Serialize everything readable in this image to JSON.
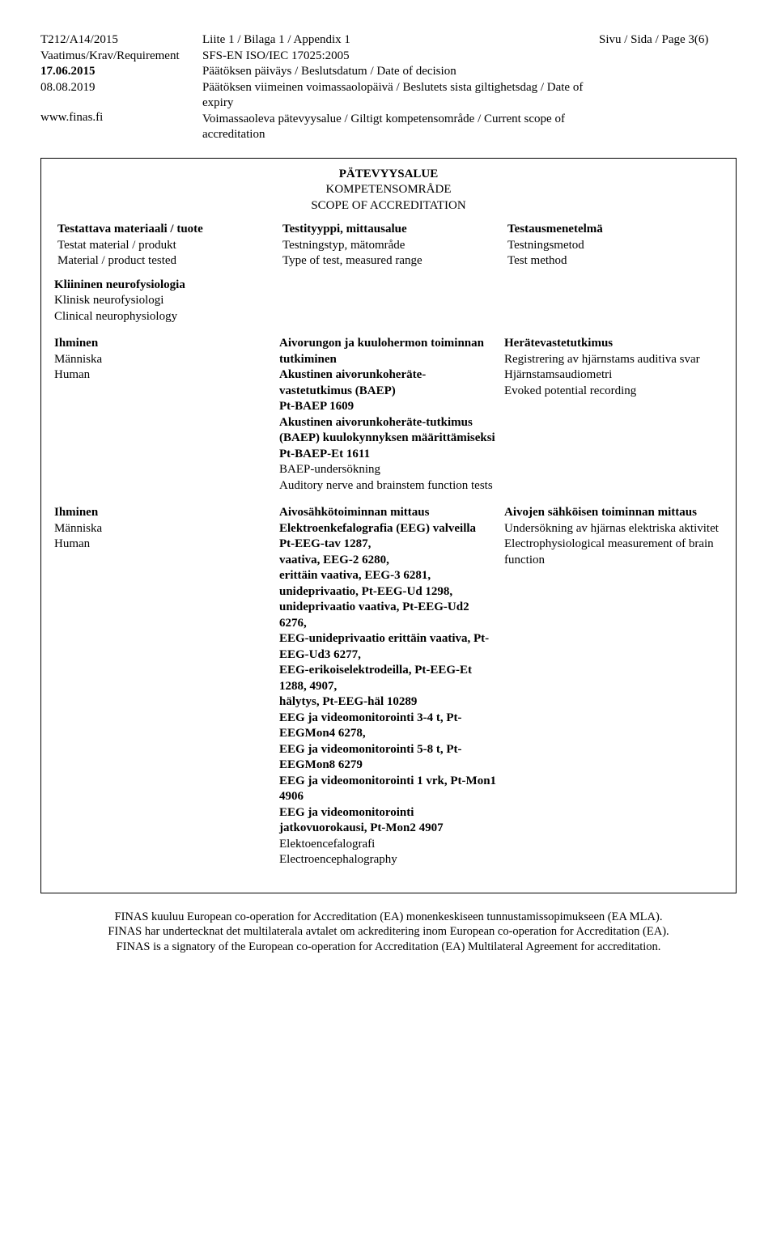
{
  "header": {
    "docCode": "T212/A14/2015",
    "reqLabel": "Vaatimus/Krav/Requirement",
    "date1": "17.06.2015",
    "date2": "08.08.2019",
    "website": "www.finas.fi",
    "mid1": "Liite 1 / Bilaga 1 / Appendix 1",
    "mid2": "SFS-EN ISO/IEC 17025:2005",
    "mid3": "Päätöksen päiväys / Beslutsdatum / Date of decision",
    "mid4": "Päätöksen viimeinen voimassaolopäivä / Beslutets sista giltighetsdag / Date of expiry",
    "mid5": "Voimassaoleva pätevyysalue / Giltigt kompetensområde / Current scope of accreditation",
    "pageLabel": "Sivu / Sida / Page 3(6)"
  },
  "scope": {
    "line1": "PÄTEVYYSALUE",
    "line2": "KOMPETENSOMRÅDE",
    "line3": "SCOPE OF ACCREDITATION"
  },
  "cols": {
    "c1a": "Testattava materiaali / tuote",
    "c1b": "Testat material / produkt",
    "c1c": "Material / product tested",
    "c2a": "Testityyppi, mittausalue",
    "c2b": "Testningstyp, mätområde",
    "c2c": "Type of test, measured range",
    "c3a": "Testausmenetelmä",
    "c3b": "Testningsmetod",
    "c3c": "Test method"
  },
  "section1": {
    "fi": "Kliininen neurofysiologia",
    "sv": "Klinisk neurofysiologi",
    "en": "Clinical neurophysiology"
  },
  "row1": {
    "left_fi": "Ihminen",
    "left_sv": "Människa",
    "left_en": "Human",
    "mid1": "Aivorungon ja kuulohermon toiminnan tutkiminen",
    "mid2": "Akustinen aivorunkoheräte-vastetutkimus (BAEP)",
    "mid3": "Pt-BAEP 1609",
    "mid4": "Akustinen aivorunkoheräte-tutkimus (BAEP) kuulokynnyksen määrittämiseksi",
    "mid5": "Pt-BAEP-Et 1611",
    "mid6": "BAEP-undersökning",
    "mid7": "Auditory nerve and brainstem function tests",
    "r1": "Herätevastetutkimus",
    "r2": "Registrering av hjärnstams auditiva svar",
    "r3": "Hjärnstamsaudiometri",
    "r4": "Evoked potential recording"
  },
  "row2": {
    "left_fi": "Ihminen",
    "left_sv": "Människa",
    "left_en": "Human",
    "mid1": "Aivosähkötoiminnan mittaus",
    "mid2": "Elektroenkefalografia (EEG) valveilla",
    "mid3": "Pt-EEG-tav 1287,",
    "mid4": "vaativa, EEG-2 6280,",
    "mid5": "erittäin vaativa, EEG-3 6281,",
    "mid6": "unideprivaatio, Pt-EEG-Ud 1298,",
    "mid7": "unideprivaatio vaativa, Pt-EEG-Ud2 6276,",
    "mid8": "EEG-unideprivaatio erittäin vaativa, Pt-EEG-Ud3 6277,",
    "mid9": "EEG-erikoiselektrodeilla, Pt-EEG-Et 1288, 4907,",
    "mid10": "hälytys, Pt-EEG-häl 10289",
    "mid11": "EEG ja videomonitorointi 3-4 t, Pt-EEGMon4 6278,",
    "mid12": "EEG ja videomonitorointi 5-8 t, Pt-EEGMon8 6279",
    "mid13": "EEG ja videomonitorointi 1 vrk, Pt-Mon1 4906",
    "mid14": "EEG ja videomonitorointi jatkovuorokausi, Pt-Mon2 4907",
    "mid15": "Elektoencefalografi",
    "mid16": "Electroencephalography",
    "r1": "Aivojen sähköisen toiminnan mittaus",
    "r2": "Undersökning av hjärnas elektriska aktivitet",
    "r3": "Electrophysiological measurement of brain function"
  },
  "footer": {
    "l1": "FINAS kuuluu European co-operation for Accreditation (EA) monenkeskiseen tunnustamissopimukseen (EA MLA).",
    "l2": "FINAS har undertecknat det multilaterala avtalet om ackreditering inom European co-operation for Accreditation (EA).",
    "l3": "FINAS is a signatory of the European co-operation for Accreditation (EA) Multilateral Agreement for accreditation."
  }
}
